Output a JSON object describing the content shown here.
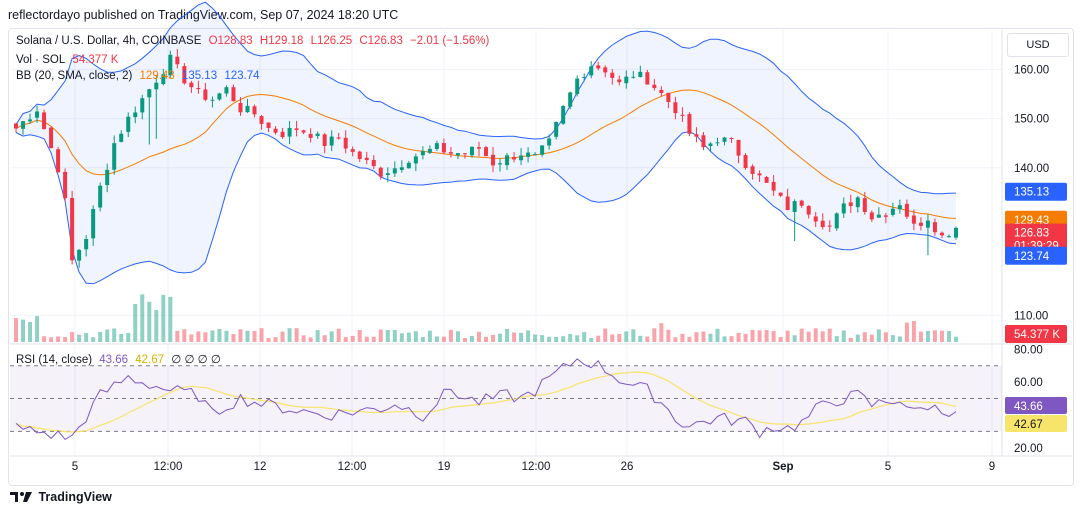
{
  "header": {
    "text": "reflectordayo published on TradingView.com, Sep 07, 2024 18:20 UTC"
  },
  "legend": {
    "symbol": "Solana / U.S. Dollar, 4h, COINBASE",
    "o": "O128.83",
    "h": "H129.18",
    "l": "L126.25",
    "c": "C126.83",
    "chg": "−2.01 (−1.56%)",
    "vol_label": "Vol · SOL",
    "vol_value": "54.377 K",
    "bb_label": "BB (20, SMA, close, 2)",
    "bb_basis": "129.43",
    "bb_upper": "135.13",
    "bb_lower": "123.74",
    "rsi_label": "RSI (14, close)",
    "rsi_value": "43.66",
    "rsi_ma": "42.67",
    "rsi_extra": "∅ ∅ ∅ ∅"
  },
  "currency_button": "USD",
  "footer": {
    "brand": "TradingView"
  },
  "colors": {
    "up": "#089981",
    "down": "#f23645",
    "basis": "#f57c00",
    "band": "#2962ff",
    "rsi": "#7e57c2",
    "rsi_ma": "#f7e46a"
  },
  "chart_data": {
    "type": "candlestick",
    "price_axis": {
      "ticks": [
        110,
        140,
        150,
        160
      ],
      "range": [
        105,
        168
      ]
    },
    "volume_label_value": "54.377 K",
    "time_axis": {
      "ticks": [
        "5",
        "12:00",
        "12",
        "12:00",
        "19",
        "12:00",
        "26",
        "Sep",
        "5",
        "9"
      ]
    },
    "price_badges": {
      "upper": "135.13",
      "basis": "129.43",
      "last": "126.83",
      "countdown": "01:39:29",
      "lower": "123.74",
      "volume": "54.377 K"
    },
    "rsi_axis": {
      "ticks": [
        80,
        60,
        20
      ],
      "bands": [
        70,
        50,
        30
      ],
      "range": [
        15,
        82
      ]
    },
    "rsi_badges": {
      "rsi": "43.66",
      "ma": "42.67"
    },
    "close_path": [
      [
        0,
        148
      ],
      [
        3,
        152
      ],
      [
        6,
        140
      ],
      [
        7,
        133
      ],
      [
        8,
        121
      ],
      [
        10,
        126
      ],
      [
        12,
        136
      ],
      [
        14,
        145
      ],
      [
        16,
        150
      ],
      [
        18,
        154
      ],
      [
        20,
        158
      ],
      [
        22,
        162
      ],
      [
        24,
        158
      ],
      [
        26,
        155
      ],
      [
        28,
        154
      ],
      [
        30,
        156
      ],
      [
        32,
        152
      ],
      [
        34,
        151
      ],
      [
        36,
        148
      ],
      [
        38,
        147
      ],
      [
        40,
        148
      ],
      [
        42,
        147
      ],
      [
        44,
        145
      ],
      [
        46,
        146
      ],
      [
        48,
        143
      ],
      [
        50,
        141
      ],
      [
        52,
        139
      ],
      [
        54,
        140
      ],
      [
        56,
        142
      ],
      [
        58,
        143
      ],
      [
        60,
        144
      ],
      [
        62,
        143
      ],
      [
        64,
        143
      ],
      [
        66,
        144
      ],
      [
        68,
        141
      ],
      [
        70,
        142
      ],
      [
        72,
        143
      ],
      [
        74,
        142
      ],
      [
        76,
        145
      ],
      [
        78,
        152
      ],
      [
        80,
        158
      ],
      [
        82,
        161
      ],
      [
        84,
        160
      ],
      [
        86,
        157
      ],
      [
        88,
        159
      ],
      [
        90,
        158
      ],
      [
        92,
        155
      ],
      [
        94,
        152
      ],
      [
        96,
        147
      ],
      [
        98,
        144
      ],
      [
        100,
        146
      ],
      [
        102,
        145
      ],
      [
        104,
        141
      ],
      [
        106,
        138
      ],
      [
        108,
        135
      ],
      [
        110,
        132
      ],
      [
        112,
        133
      ],
      [
        114,
        130
      ],
      [
        116,
        128
      ],
      [
        118,
        132
      ],
      [
        120,
        134
      ],
      [
        122,
        130
      ],
      [
        124,
        131
      ],
      [
        126,
        133
      ],
      [
        128,
        128
      ],
      [
        130,
        130
      ],
      [
        132,
        126
      ],
      [
        134,
        128
      ]
    ],
    "rsi_path": [
      [
        0,
        32
      ],
      [
        4,
        29
      ],
      [
        8,
        26
      ],
      [
        12,
        52
      ],
      [
        16,
        63
      ],
      [
        18,
        60
      ],
      [
        22,
        55
      ],
      [
        26,
        52
      ],
      [
        28,
        40
      ],
      [
        30,
        46
      ],
      [
        32,
        50
      ],
      [
        36,
        46
      ],
      [
        40,
        43
      ],
      [
        44,
        40
      ],
      [
        48,
        42
      ],
      [
        52,
        44
      ],
      [
        54,
        47
      ],
      [
        58,
        40
      ],
      [
        60,
        48
      ],
      [
        62,
        56
      ],
      [
        64,
        50
      ],
      [
        66,
        48
      ],
      [
        70,
        52
      ],
      [
        72,
        50
      ],
      [
        74,
        55
      ],
      [
        76,
        62
      ],
      [
        78,
        68
      ],
      [
        80,
        74
      ],
      [
        82,
        72
      ],
      [
        84,
        68
      ],
      [
        86,
        62
      ],
      [
        88,
        58
      ],
      [
        90,
        55
      ],
      [
        92,
        48
      ],
      [
        94,
        38
      ],
      [
        96,
        33
      ],
      [
        98,
        36
      ],
      [
        100,
        38
      ],
      [
        104,
        36
      ],
      [
        106,
        30
      ],
      [
        108,
        33
      ],
      [
        110,
        32
      ],
      [
        112,
        35
      ],
      [
        114,
        43
      ],
      [
        116,
        48
      ],
      [
        118,
        50
      ],
      [
        120,
        52
      ],
      [
        122,
        46
      ],
      [
        124,
        48
      ],
      [
        126,
        50
      ],
      [
        128,
        41
      ],
      [
        130,
        46
      ],
      [
        132,
        42
      ],
      [
        134,
        44
      ]
    ]
  }
}
